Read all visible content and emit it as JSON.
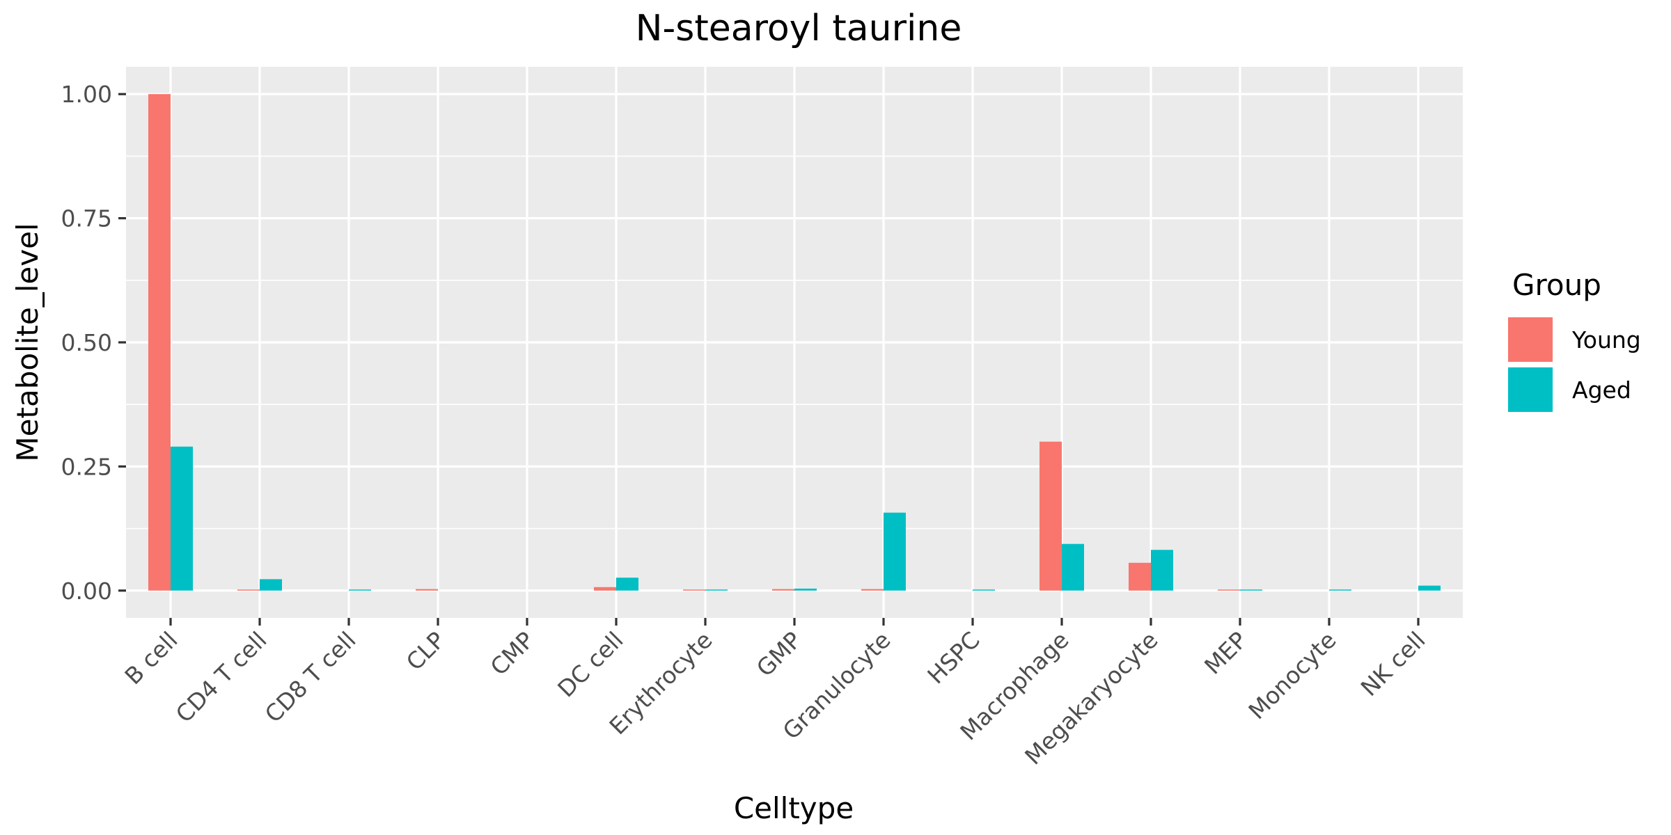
{
  "chart_data": {
    "type": "bar",
    "title": "N-stearoyl taurine",
    "xlabel": "Celltype",
    "ylabel": "Metabolite_level",
    "ylim": [
      -0.055,
      1.055
    ],
    "yticks": [
      0,
      0.25,
      0.5,
      0.75,
      1.0
    ],
    "ytick_labels": [
      "0.00",
      "0.25",
      "0.50",
      "0.75",
      "1.00"
    ],
    "grid": true,
    "legend_position": "right",
    "legend_title": "Group",
    "categories": [
      "B cell",
      "CD4 T cell",
      "CD8 T cell",
      "CLP",
      "CMP",
      "DC cell",
      "Erythrocyte",
      "GMP",
      "Granulocyte",
      "HSPC",
      "Macrophage",
      "Megakaryocyte",
      "MEP",
      "Monocyte",
      "NK cell"
    ],
    "series": [
      {
        "name": "Young",
        "color": "#F8766D",
        "values": [
          1.0,
          0.001,
          0.0,
          0.003,
          0.0,
          0.007,
          0.002,
          0.003,
          0.003,
          0.0,
          0.3,
          0.056,
          0.002,
          0.0,
          0.0
        ]
      },
      {
        "name": "Aged",
        "color": "#00BFC4",
        "values": [
          0.29,
          0.023,
          0.001,
          0.0,
          0.0,
          0.026,
          0.002,
          0.004,
          0.157,
          0.002,
          0.094,
          0.082,
          0.001,
          0.001,
          0.01
        ]
      }
    ]
  }
}
